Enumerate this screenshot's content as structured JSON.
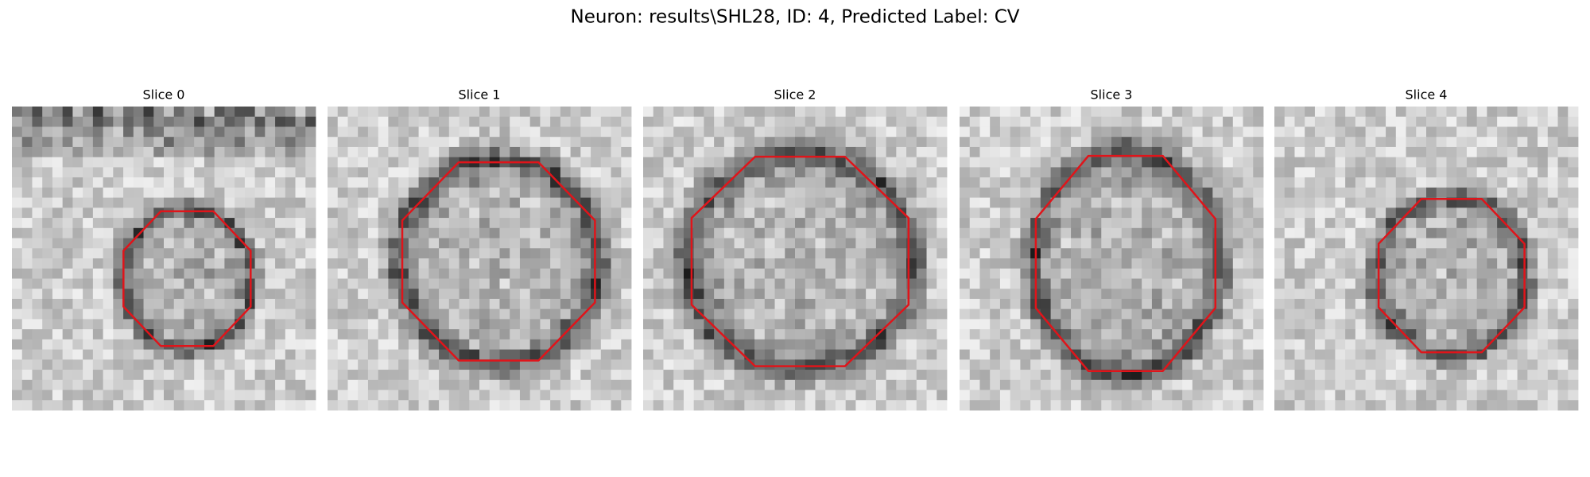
{
  "figure": {
    "title": "Neuron: results\\SHL28, ID: 4, Predicted Label: CV",
    "panels": [
      {
        "title": "Slice 0"
      },
      {
        "title": "Slice 1"
      },
      {
        "title": "Slice 2"
      },
      {
        "title": "Slice 3"
      },
      {
        "title": "Slice 4"
      }
    ]
  }
}
